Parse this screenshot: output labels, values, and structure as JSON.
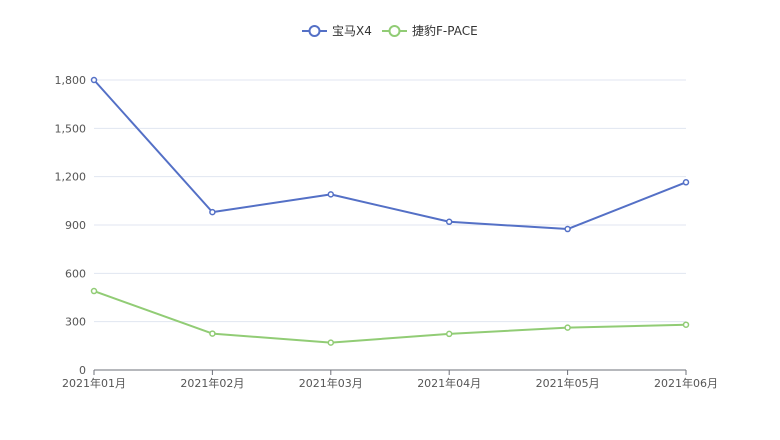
{
  "chart_data": {
    "type": "line",
    "title": "",
    "xlabel": "",
    "ylabel": "",
    "categories": [
      "2021年01月",
      "2021年02月",
      "2021年03月",
      "2021年04月",
      "2021年05月",
      "2021年06月"
    ],
    "ylim": [
      0,
      1800
    ],
    "yticks": [
      0,
      300,
      600,
      900,
      1200,
      1500,
      1800
    ],
    "ytick_labels": [
      "0",
      "300",
      "600",
      "900",
      "1,200",
      "1,500",
      "1,800"
    ],
    "grid": true,
    "legend_position": "top-center",
    "series": [
      {
        "name": "宝马X4",
        "color": "#5470c6",
        "values": [
          1800,
          980,
          1090,
          920,
          875,
          1165
        ]
      },
      {
        "name": "捷豹F-PACE",
        "color": "#91cc75",
        "values": [
          490,
          226,
          170,
          224,
          263,
          281
        ]
      }
    ]
  }
}
